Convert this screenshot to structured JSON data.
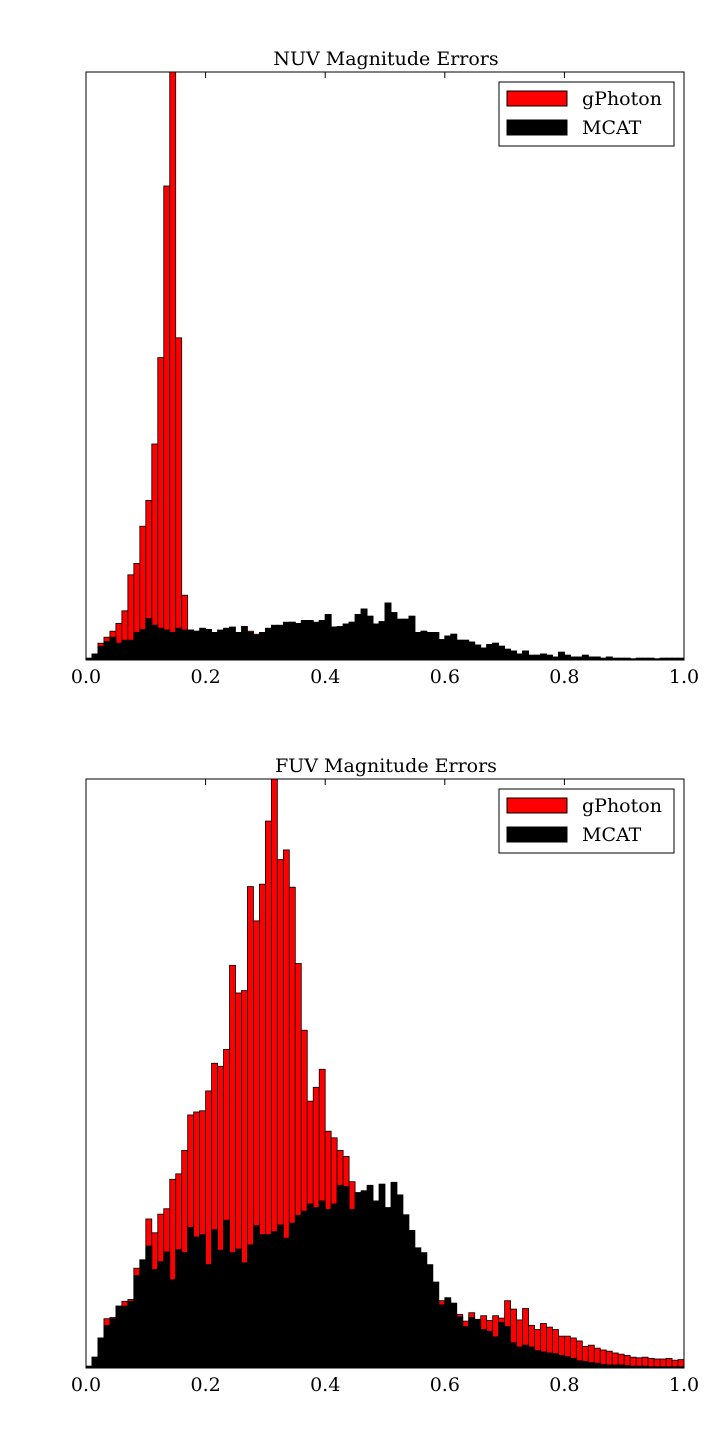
{
  "chart_data": [
    {
      "type": "bar",
      "title": "NUV Magnitude Errors",
      "xlabel": "",
      "ylabel": "",
      "xlim": [
        0.0,
        1.0
      ],
      "ylim": [
        0,
        98
      ],
      "x_ticks": [
        "0.0",
        "0.2",
        "0.4",
        "0.6",
        "0.8",
        "1.0"
      ],
      "y_ticks_shown": false,
      "grid": false,
      "legend_position": "top-right",
      "bin_width": 0.01,
      "bin_starts": [
        0.0,
        0.01,
        0.02,
        0.03,
        0.04,
        0.05,
        0.06,
        0.07,
        0.08,
        0.09,
        0.1,
        0.11,
        0.12,
        0.13,
        0.14,
        0.15,
        0.16,
        0.17,
        0.18,
        0.19,
        0.2,
        0.21,
        0.22,
        0.23,
        0.24,
        0.25,
        0.26,
        0.27,
        0.28,
        0.29,
        0.3,
        0.31,
        0.32,
        0.33,
        0.34,
        0.35,
        0.36,
        0.37,
        0.38,
        0.39,
        0.4,
        0.41,
        0.42,
        0.43,
        0.44,
        0.45,
        0.46,
        0.47,
        0.48,
        0.49,
        0.5,
        0.51,
        0.52,
        0.53,
        0.54,
        0.55,
        0.56,
        0.57,
        0.58,
        0.59,
        0.6,
        0.61,
        0.62,
        0.63,
        0.64,
        0.65,
        0.66,
        0.67,
        0.68,
        0.69,
        0.7,
        0.71,
        0.72,
        0.73,
        0.74,
        0.75,
        0.76,
        0.77,
        0.78,
        0.79,
        0.8,
        0.81,
        0.82,
        0.83,
        0.84,
        0.85,
        0.86,
        0.87,
        0.88,
        0.89,
        0.9,
        0.91,
        0.92,
        0.93,
        0.94,
        0.95,
        0.96,
        0.97,
        0.98,
        0.99
      ],
      "series": [
        {
          "name": "gPhoton",
          "color": "#ff0000",
          "values": [
            0.3,
            1.0,
            2.8,
            3.8,
            4.8,
            6.1,
            8.2,
            14.2,
            16.1,
            22.3,
            26.6,
            36.0,
            50.4,
            79.0,
            98.0,
            53.7,
            10.8,
            5.0,
            4.8,
            4.3,
            4.5,
            4.2,
            4.0,
            4.2,
            4.5,
            4.6,
            4.1,
            4.8,
            4.3,
            4.0,
            4.6,
            5.3,
            5.6,
            5.8,
            6.3,
            6.0,
            6.4,
            6.4,
            6.1,
            6.6,
            7.6,
            5.5,
            5.6,
            6.0,
            6.3,
            7.6,
            8.5,
            7.3,
            6.0,
            6.4,
            9.5,
            7.9,
            6.8,
            6.8,
            7.3,
            4.6,
            4.8,
            4.6,
            4.6,
            3.4,
            4.0,
            4.3,
            3.3,
            3.3,
            3.0,
            2.5,
            2.0,
            2.6,
            2.8,
            2.3,
            1.8,
            1.5,
            1.0,
            1.5,
            0.8,
            0.8,
            1.0,
            0.8,
            0.5,
            1.3,
            0.8,
            0.5,
            0.5,
            0.8,
            0.5,
            0.5,
            0.3,
            0.5,
            0.3,
            0.3,
            0.3,
            0.2,
            0.3,
            0.3,
            0.3,
            0.2,
            0.3,
            0.3,
            0.3,
            0.3
          ]
        },
        {
          "name": "MCAT",
          "color": "#000000",
          "values": [
            0.3,
            1.0,
            2.3,
            3.1,
            3.8,
            2.8,
            3.3,
            3.3,
            4.6,
            5.1,
            6.9,
            5.8,
            5.3,
            5.0,
            4.6,
            5.3,
            5.0,
            5.0,
            4.8,
            5.3,
            5.1,
            4.6,
            5.0,
            5.3,
            5.5,
            4.6,
            5.6,
            4.6,
            4.1,
            4.6,
            5.3,
            5.8,
            5.8,
            6.3,
            6.3,
            6.1,
            6.6,
            6.6,
            6.3,
            6.6,
            7.6,
            5.5,
            5.6,
            6.0,
            6.3,
            7.6,
            8.5,
            7.3,
            6.0,
            6.4,
            9.5,
            7.9,
            6.8,
            6.8,
            7.3,
            4.6,
            4.8,
            4.6,
            4.6,
            3.4,
            4.0,
            4.3,
            3.3,
            3.3,
            3.0,
            2.5,
            2.0,
            2.6,
            2.8,
            2.3,
            1.8,
            1.5,
            1.0,
            1.5,
            0.8,
            0.8,
            1.0,
            0.8,
            0.5,
            1.3,
            0.8,
            0.5,
            0.5,
            0.8,
            0.5,
            0.5,
            0.3,
            0.5,
            0.3,
            0.3,
            0.3,
            0.2,
            0.3,
            0.3,
            0.3,
            0.2,
            0.3,
            0.3,
            0.3,
            0.3
          ]
        }
      ]
    },
    {
      "type": "bar",
      "title": "FUV Magnitude Errors",
      "xlabel": "",
      "ylabel": "",
      "xlim": [
        0.0,
        1.0
      ],
      "ylim": [
        0,
        98
      ],
      "x_ticks": [
        "0.0",
        "0.2",
        "0.4",
        "0.6",
        "0.8",
        "1.0"
      ],
      "y_ticks_shown": false,
      "grid": false,
      "legend_position": "top-right",
      "bin_width": 0.01,
      "bin_starts": [
        0.0,
        0.01,
        0.02,
        0.03,
        0.04,
        0.05,
        0.06,
        0.07,
        0.08,
        0.09,
        0.1,
        0.11,
        0.12,
        0.13,
        0.14,
        0.15,
        0.16,
        0.17,
        0.18,
        0.19,
        0.2,
        0.21,
        0.22,
        0.23,
        0.24,
        0.25,
        0.26,
        0.27,
        0.28,
        0.29,
        0.3,
        0.31,
        0.32,
        0.33,
        0.34,
        0.35,
        0.36,
        0.37,
        0.38,
        0.39,
        0.4,
        0.41,
        0.42,
        0.43,
        0.44,
        0.45,
        0.46,
        0.47,
        0.48,
        0.49,
        0.5,
        0.51,
        0.52,
        0.53,
        0.54,
        0.55,
        0.56,
        0.57,
        0.58,
        0.59,
        0.6,
        0.61,
        0.62,
        0.63,
        0.64,
        0.65,
        0.66,
        0.67,
        0.68,
        0.69,
        0.7,
        0.71,
        0.72,
        0.73,
        0.74,
        0.75,
        0.76,
        0.77,
        0.78,
        0.79,
        0.8,
        0.81,
        0.82,
        0.83,
        0.84,
        0.85,
        0.86,
        0.87,
        0.88,
        0.89,
        0.9,
        0.91,
        0.92,
        0.93,
        0.94,
        0.95,
        0.96,
        0.97,
        0.98,
        0.99
      ],
      "series": [
        {
          "name": "gPhoton",
          "color": "#ff0000",
          "values": [
            0.3,
            1.8,
            5.0,
            8.2,
            8.4,
            10.3,
            11.1,
            11.4,
            16.6,
            18.0,
            24.8,
            22.5,
            25.6,
            26.5,
            31.4,
            32.3,
            36.2,
            42.1,
            42.6,
            42.8,
            46.1,
            50.7,
            50.2,
            53.0,
            67.0,
            62.4,
            62.8,
            80.1,
            74.4,
            80.5,
            91.0,
            98.0,
            84.6,
            86.2,
            80.0,
            67.3,
            56.2,
            44.4,
            46.7,
            49.7,
            39.4,
            38.3,
            36.2,
            35.2,
            31.0,
            27.1,
            28.2,
            25.4,
            24.9,
            20.8,
            21.8,
            21.6,
            17.2,
            15.9,
            15.2,
            16.8,
            16.5,
            12.1,
            10.3,
            11.2,
            11.2,
            7.3,
            8.9,
            7.8,
            9.2,
            7.6,
            8.7,
            7.9,
            8.7,
            8.3,
            11.2,
            9.8,
            8.0,
            9.9,
            7.1,
            6.4,
            7.4,
            6.8,
            6.4,
            5.3,
            5.3,
            5.0,
            4.5,
            3.6,
            3.8,
            3.3,
            3.0,
            2.8,
            2.5,
            2.3,
            2.1,
            1.8,
            1.7,
            1.8,
            1.6,
            1.5,
            1.5,
            1.6,
            1.3,
            1.4
          ]
        },
        {
          "name": "MCAT",
          "color": "#000000",
          "values": [
            0.3,
            1.8,
            5.0,
            7.1,
            8.2,
            10.3,
            10.3,
            11.1,
            15.4,
            18.0,
            20.3,
            16.4,
            17.7,
            19.3,
            14.7,
            19.7,
            19.2,
            23.4,
            21.8,
            22.2,
            17.2,
            23.0,
            19.6,
            24.6,
            19.2,
            19.8,
            17.5,
            20.5,
            23.7,
            22.2,
            22.2,
            22.7,
            23.8,
            21.6,
            24.1,
            25.4,
            26.1,
            27.3,
            26.7,
            27.8,
            26.4,
            27.3,
            30.4,
            30.2,
            26.4,
            29.2,
            29.5,
            30.4,
            27.8,
            30.6,
            26.7,
            30.9,
            28.8,
            25.5,
            22.9,
            20.0,
            19.2,
            17.2,
            14.3,
            10.5,
            11.7,
            10.8,
            8.5,
            6.9,
            8.4,
            8.1,
            6.4,
            6.1,
            5.2,
            7.6,
            6.9,
            4.2,
            3.5,
            3.8,
            3.5,
            2.9,
            2.7,
            2.5,
            2.4,
            2.1,
            1.9,
            1.6,
            1.2,
            1.1,
            0.9,
            0.8,
            0.6,
            0.5,
            0.5,
            0.5,
            0.4,
            0.3,
            0.3,
            0.3,
            0.2,
            0.2,
            0.2,
            0.2,
            0.2,
            0.2
          ]
        }
      ]
    }
  ],
  "panels": [
    {
      "title": "NUV Magnitude Errors",
      "x_ticks": [
        "0.0",
        "0.2",
        "0.4",
        "0.6",
        "0.8",
        "1.0"
      ],
      "legend": [
        {
          "label": "gPhoton",
          "color": "#ff0000"
        },
        {
          "label": "MCAT",
          "color": "#000000"
        }
      ]
    },
    {
      "title": "FUV Magnitude Errors",
      "x_ticks": [
        "0.0",
        "0.2",
        "0.4",
        "0.6",
        "0.8",
        "1.0"
      ],
      "legend": [
        {
          "label": "gPhoton",
          "color": "#ff0000"
        },
        {
          "label": "MCAT",
          "color": "#000000"
        }
      ]
    }
  ]
}
